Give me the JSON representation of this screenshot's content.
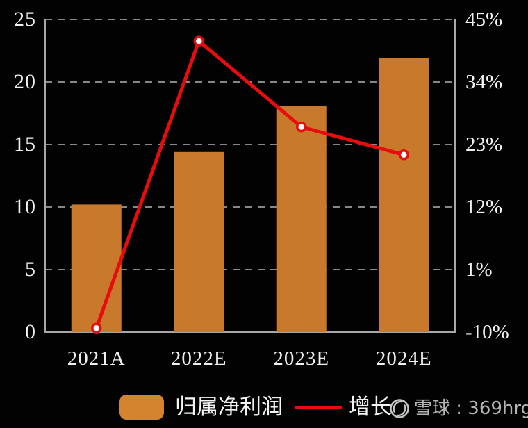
{
  "chart_data": {
    "type": "bar",
    "combo": "bar+line",
    "title": "",
    "categories": [
      "2021A",
      "2022E",
      "2023E",
      "2024E"
    ],
    "series": [
      {
        "name": "归属净利润",
        "type": "bar",
        "axis": "left",
        "values": [
          10.2,
          14.4,
          18.1,
          21.9
        ]
      },
      {
        "name": "增长",
        "type": "line",
        "axis": "right",
        "values": [
          -9.3,
          41.2,
          26.1,
          21.2
        ],
        "unit": "%"
      }
    ],
    "left_axis": {
      "min": 0,
      "max": 25,
      "ticks": [
        "0",
        "5",
        "10",
        "15",
        "20",
        "25"
      ]
    },
    "right_axis": {
      "min": -10,
      "max": 45,
      "ticks": [
        "-10%",
        "1%",
        "12%",
        "23%",
        "34%",
        "45%"
      ]
    },
    "grid": "dashed-horizontal",
    "legend_position": "bottom"
  },
  "legend": {
    "bar_label": "归属净利润",
    "line_label": "增长"
  },
  "watermark": {
    "icon": "xueqiu-logo",
    "text": "雪球 : 369hrg"
  },
  "colors": {
    "background": "#020202",
    "bar": "#c8792b",
    "bar_legend": "#d4832f",
    "line": "#e80c0c",
    "marker_fill": "#ffffff",
    "grid": "#888888",
    "axis": "#a8a8a8",
    "tick_text": "#f2f2f2",
    "watermark_text": "#b5b5b5"
  }
}
